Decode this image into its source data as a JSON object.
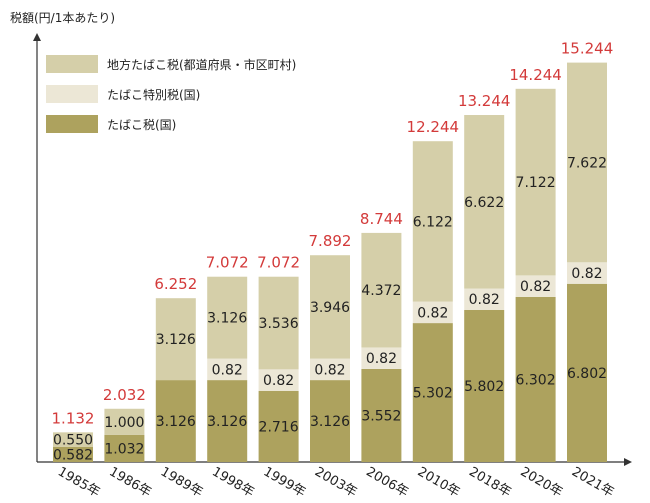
{
  "chart_data": {
    "type": "bar",
    "stacked": true,
    "ylabel": "税額(円/1本あたり)",
    "categories": [
      "1985年",
      "1986年",
      "1989年",
      "1998年",
      "1999年",
      "2003年",
      "2006年",
      "2010年",
      "2018年",
      "2020年",
      "2021年"
    ],
    "series": [
      {
        "name": "たばこ税(国)",
        "color": "#ada25e",
        "values": [
          0.582,
          1.032,
          3.126,
          3.126,
          2.716,
          3.126,
          3.552,
          5.302,
          5.802,
          6.302,
          6.802
        ]
      },
      {
        "name": "たばこ特別税(国)",
        "color": "#ece7d6",
        "values": [
          null,
          null,
          null,
          0.82,
          0.82,
          0.82,
          0.82,
          0.82,
          0.82,
          0.82,
          0.82
        ]
      },
      {
        "name": "地方たばこ税(都道府県・市区町村)",
        "color": "#d5cfa9",
        "values": [
          0.55,
          1.0,
          3.126,
          3.126,
          3.536,
          3.946,
          4.372,
          6.122,
          6.622,
          7.122,
          7.622
        ]
      }
    ],
    "segment_labels": [
      [
        "0.582",
        "1.032",
        "3.126",
        "3.126",
        "2.716",
        "3.126",
        "3.552",
        "5.302",
        "5.802",
        "6.302",
        "6.802"
      ],
      [
        "",
        "",
        "",
        "0.82",
        "0.82",
        "0.82",
        "0.82",
        "0.82",
        "0.82",
        "0.82",
        "0.82"
      ],
      [
        "0.550",
        "1.000",
        "3.126",
        "3.126",
        "3.536",
        "3.946",
        "4.372",
        "6.122",
        "6.622",
        "7.122",
        "7.622"
      ]
    ],
    "totals": [
      "1.132",
      "2.032",
      "6.252",
      "7.072",
      "7.072",
      "7.892",
      "8.744",
      "12.244",
      "13.244",
      "14.244",
      "15.244"
    ],
    "ylim": [
      0,
      16
    ],
    "legend": {
      "position": "top-left",
      "order": [
        "地方たばこ税(都道府県・市区町村)",
        "たばこ特別税(国)",
        "たばこ税(国)"
      ]
    },
    "colors": {
      "total_label": "#d33a3a",
      "axis": "#333333",
      "text": "#222222"
    },
    "grid": false
  }
}
